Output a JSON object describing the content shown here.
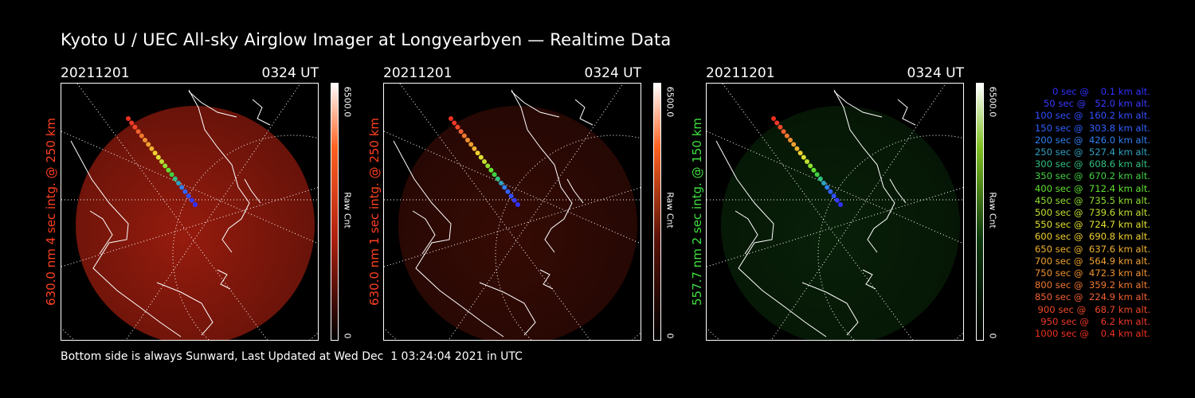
{
  "title": "Kyoto U / UEC All-sky Airglow Imager at Longyearbyen — Realtime Data",
  "footer": "Bottom side is always Sunward, Last Updated at Wed Dec  1 03:24:04 2021 in UTC",
  "panels": [
    {
      "date": "20211201",
      "time": "0324 UT",
      "side_label": "630.0 nm 4 sec intg. @ 250 km",
      "label_color": "#ff4020",
      "cbar_max": "6500.0",
      "cbar_min": "0",
      "cbar_unit": "Raw Cnt",
      "glow_color": "#b02010",
      "glow_intensity": 0.85
    },
    {
      "date": "20211201",
      "time": "0324 UT",
      "side_label": "630.0 nm 1 sec intg. @ 250 km",
      "label_color": "#ff4020",
      "cbar_max": "6500.0",
      "cbar_min": "0",
      "cbar_unit": "Raw Cnt",
      "glow_color": "#5a1208",
      "glow_intensity": 0.6
    },
    {
      "date": "20211201",
      "time": "0324 UT",
      "side_label": "557.7 nm 2 sec intg. @ 150 km",
      "label_color": "#40e040",
      "cbar_max": "6500.0",
      "cbar_min": "0",
      "cbar_unit": "Raw Cnt",
      "glow_color": "#0f3a0f",
      "glow_intensity": 0.55
    }
  ],
  "legend": [
    {
      "text": "   0 sec @    0.1 km alt.",
      "color": "#3030ff"
    },
    {
      "text": "  50 sec @   52.0 km alt.",
      "color": "#3838ff"
    },
    {
      "text": " 100 sec @  160.2 km alt.",
      "color": "#3050ff"
    },
    {
      "text": " 150 sec @  303.8 km alt.",
      "color": "#3060ff"
    },
    {
      "text": " 200 sec @  426.0 km alt.",
      "color": "#3080f0"
    },
    {
      "text": " 250 sec @  527.4 km alt.",
      "color": "#30a0c0"
    },
    {
      "text": " 300 sec @  608.6 km alt.",
      "color": "#30c080"
    },
    {
      "text": " 350 sec @  670.2 km alt.",
      "color": "#40d040"
    },
    {
      "text": " 400 sec @  712.4 km alt.",
      "color": "#60e030"
    },
    {
      "text": " 450 sec @  735.5 km alt.",
      "color": "#90e030"
    },
    {
      "text": " 500 sec @  739.6 km alt.",
      "color": "#c0e030"
    },
    {
      "text": " 550 sec @  724.7 km alt.",
      "color": "#e0e030"
    },
    {
      "text": " 600 sec @  690.8 km alt.",
      "color": "#f0d030"
    },
    {
      "text": " 650 sec @  637.6 km alt.",
      "color": "#f0b030"
    },
    {
      "text": " 700 sec @  564.9 km alt.",
      "color": "#f0a030"
    },
    {
      "text": " 750 sec @  472.3 km alt.",
      "color": "#f09030"
    },
    {
      "text": " 800 sec @  359.2 km alt.",
      "color": "#f07830"
    },
    {
      "text": " 850 sec @  224.9 km alt.",
      "color": "#f06030"
    },
    {
      "text": " 900 sec @   68.7 km alt.",
      "color": "#f04828"
    },
    {
      "text": " 950 sec @    6.2 km alt.",
      "color": "#f03828"
    },
    {
      "text": "1000 sec @    0.4 km alt.",
      "color": "#f03020"
    }
  ]
}
